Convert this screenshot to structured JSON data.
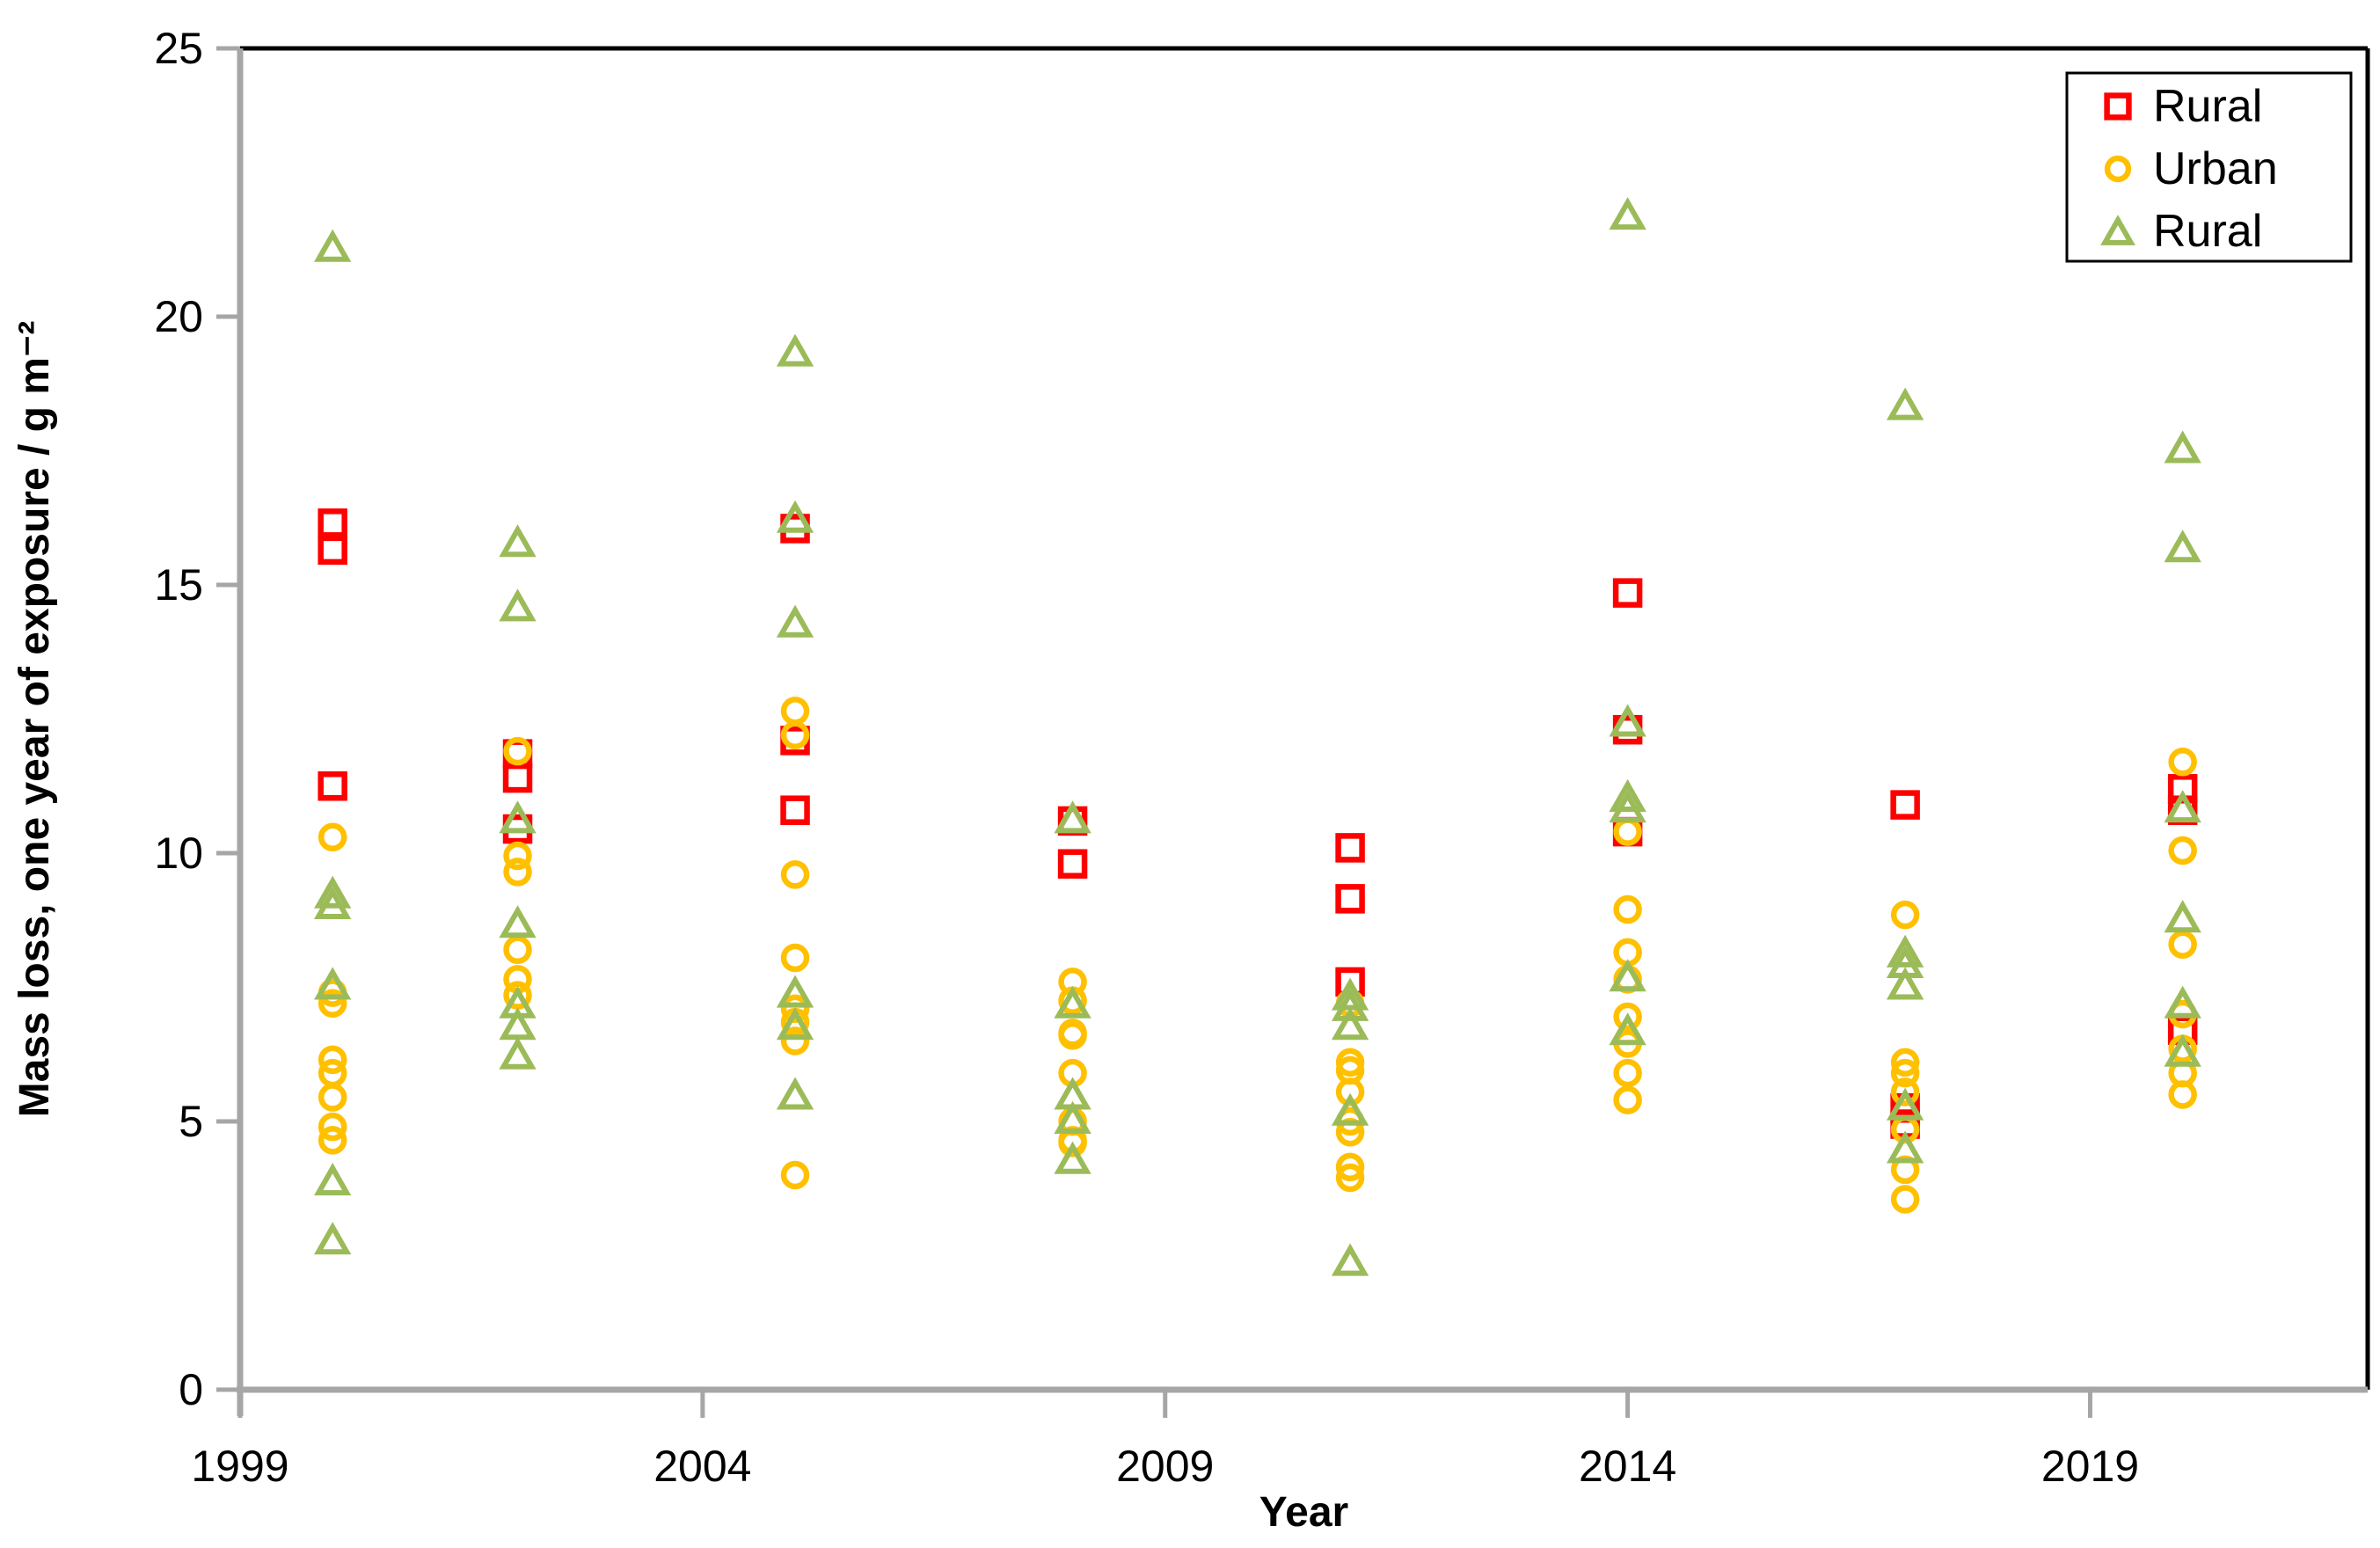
{
  "chart_data": {
    "type": "scatter",
    "title": "",
    "xlabel": "Year",
    "ylabel": "Mass loss, one year of exposure / g m⁻²",
    "xlim": [
      1999,
      2022
    ],
    "ylim": [
      0,
      25
    ],
    "x_ticks": [
      "1999",
      "2004",
      "2009",
      "2014",
      "2019"
    ],
    "x_tick_values": [
      1999,
      2004,
      2009,
      2014,
      2019
    ],
    "y_ticks": [
      "0",
      "5",
      "10",
      "15",
      "20",
      "25"
    ],
    "y_tick_values": [
      0,
      5,
      10,
      15,
      20,
      25
    ],
    "grid": false,
    "legend_position": "top-right",
    "colors": {
      "rural_square": "#FF0000",
      "urban_circle": "#FFC000",
      "rural_triangle": "#9BBB59",
      "axis_line": "#A6A6A6",
      "plot_border": "#000000",
      "text": "#000000",
      "background": "#FFFFFF"
    },
    "series": [
      {
        "name": "Rural",
        "marker": "square",
        "color": "#FF0000",
        "points": [
          [
            2000,
            16.15
          ],
          [
            2000,
            15.65
          ],
          [
            2000,
            11.25
          ],
          [
            2002,
            11.85
          ],
          [
            2002,
            11.4
          ],
          [
            2002,
            10.45
          ],
          [
            2005,
            16.05
          ],
          [
            2005,
            12.1
          ],
          [
            2005,
            10.8
          ],
          [
            2008,
            10.6
          ],
          [
            2008,
            9.8
          ],
          [
            2011,
            10.1
          ],
          [
            2011,
            9.15
          ],
          [
            2011,
            7.6
          ],
          [
            2014,
            14.85
          ],
          [
            2014,
            12.3
          ],
          [
            2014,
            10.4
          ],
          [
            2017,
            10.9
          ],
          [
            2017,
            5.25
          ],
          [
            2017,
            4.95
          ],
          [
            2020,
            11.2
          ],
          [
            2020,
            10.8
          ],
          [
            2020,
            6.7
          ]
        ]
      },
      {
        "name": "Urban",
        "marker": "circle",
        "color": "#FFC000",
        "points": [
          [
            2000,
            10.3
          ],
          [
            2000,
            7.4
          ],
          [
            2000,
            7.2
          ],
          [
            2000,
            6.15
          ],
          [
            2000,
            5.9
          ],
          [
            2000,
            5.45
          ],
          [
            2000,
            4.9
          ],
          [
            2000,
            4.65
          ],
          [
            2002,
            11.9
          ],
          [
            2002,
            9.95
          ],
          [
            2002,
            9.65
          ],
          [
            2002,
            8.2
          ],
          [
            2002,
            7.65
          ],
          [
            2002,
            7.35
          ],
          [
            2005,
            12.65
          ],
          [
            2005,
            12.2
          ],
          [
            2005,
            9.6
          ],
          [
            2005,
            8.05
          ],
          [
            2005,
            7.1
          ],
          [
            2005,
            6.85
          ],
          [
            2005,
            6.5
          ],
          [
            2005,
            4.0
          ],
          [
            2008,
            7.6
          ],
          [
            2008,
            7.25
          ],
          [
            2008,
            6.65
          ],
          [
            2008,
            6.6
          ],
          [
            2008,
            5.9
          ],
          [
            2008,
            5.0
          ],
          [
            2008,
            4.65
          ],
          [
            2008,
            4.6
          ],
          [
            2011,
            7.2
          ],
          [
            2011,
            6.1
          ],
          [
            2011,
            5.95
          ],
          [
            2011,
            5.55
          ],
          [
            2011,
            5.0
          ],
          [
            2011,
            4.8
          ],
          [
            2011,
            4.15
          ],
          [
            2011,
            3.95
          ],
          [
            2014,
            10.4
          ],
          [
            2014,
            8.95
          ],
          [
            2014,
            8.15
          ],
          [
            2014,
            7.65
          ],
          [
            2014,
            6.95
          ],
          [
            2014,
            6.45
          ],
          [
            2014,
            5.9
          ],
          [
            2014,
            5.4
          ],
          [
            2017,
            8.85
          ],
          [
            2017,
            6.1
          ],
          [
            2017,
            5.9
          ],
          [
            2017,
            5.55
          ],
          [
            2017,
            4.85
          ],
          [
            2017,
            4.1
          ],
          [
            2017,
            3.55
          ],
          [
            2020,
            11.7
          ],
          [
            2020,
            10.05
          ],
          [
            2020,
            8.3
          ],
          [
            2020,
            7.0
          ],
          [
            2020,
            6.35
          ],
          [
            2020,
            5.9
          ],
          [
            2020,
            5.5
          ]
        ]
      },
      {
        "name": "Rural",
        "marker": "triangle",
        "color": "#9BBB59",
        "points": [
          [
            2000,
            21.3
          ],
          [
            2000,
            9.25
          ],
          [
            2000,
            9.05
          ],
          [
            2000,
            7.55
          ],
          [
            2000,
            3.9
          ],
          [
            2000,
            2.8
          ],
          [
            2002,
            15.8
          ],
          [
            2002,
            14.6
          ],
          [
            2002,
            10.65
          ],
          [
            2002,
            8.7
          ],
          [
            2002,
            7.2
          ],
          [
            2002,
            6.8
          ],
          [
            2002,
            6.25
          ],
          [
            2005,
            19.35
          ],
          [
            2005,
            16.25
          ],
          [
            2005,
            14.3
          ],
          [
            2005,
            7.4
          ],
          [
            2005,
            6.8
          ],
          [
            2005,
            5.5
          ],
          [
            2008,
            10.65
          ],
          [
            2008,
            7.2
          ],
          [
            2008,
            5.5
          ],
          [
            2008,
            5.05
          ],
          [
            2008,
            4.3
          ],
          [
            2011,
            7.35
          ],
          [
            2011,
            7.15
          ],
          [
            2011,
            6.8
          ],
          [
            2011,
            5.2
          ],
          [
            2011,
            2.4
          ],
          [
            2014,
            21.9
          ],
          [
            2014,
            12.45
          ],
          [
            2014,
            11.05
          ],
          [
            2014,
            10.85
          ],
          [
            2014,
            7.7
          ],
          [
            2014,
            6.7
          ],
          [
            2017,
            18.35
          ],
          [
            2017,
            8.15
          ],
          [
            2017,
            7.95
          ],
          [
            2017,
            7.55
          ],
          [
            2017,
            5.3
          ],
          [
            2017,
            4.5
          ],
          [
            2020,
            17.55
          ],
          [
            2020,
            15.7
          ],
          [
            2020,
            10.85
          ],
          [
            2020,
            8.8
          ],
          [
            2020,
            7.2
          ],
          [
            2020,
            6.3
          ]
        ]
      }
    ]
  }
}
